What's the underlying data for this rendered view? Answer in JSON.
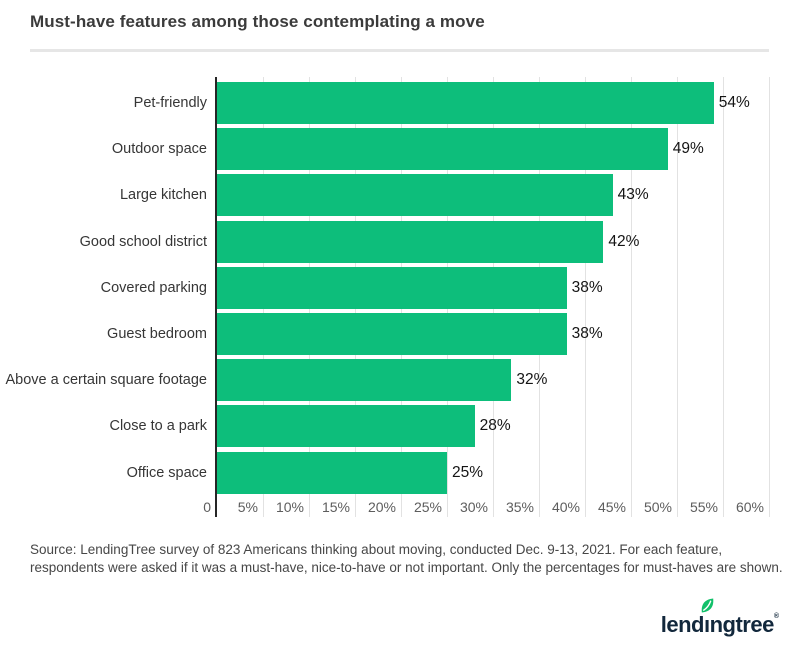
{
  "title": "Must-have features among those contemplating a move",
  "chart_data": {
    "type": "bar",
    "orientation": "horizontal",
    "title": "Must-have features among those contemplating a move",
    "categories": [
      "Pet-friendly",
      "Outdoor space",
      "Large kitchen",
      "Good school district",
      "Covered parking",
      "Guest bedroom",
      "Above a certain square footage",
      "Close to a park",
      "Office space"
    ],
    "values": [
      54,
      49,
      43,
      42,
      38,
      38,
      32,
      28,
      25
    ],
    "value_labels": [
      "54%",
      "49%",
      "43%",
      "42%",
      "38%",
      "38%",
      "32%",
      "28%",
      "25%"
    ],
    "x_ticks": [
      {
        "pct": 0,
        "label": "0"
      },
      {
        "pct": 5,
        "label": "5%"
      },
      {
        "pct": 10,
        "label": "10%"
      },
      {
        "pct": 15,
        "label": "15%"
      },
      {
        "pct": 20,
        "label": "20%"
      },
      {
        "pct": 25,
        "label": "25%"
      },
      {
        "pct": 30,
        "label": "30%"
      },
      {
        "pct": 35,
        "label": "35%"
      },
      {
        "pct": 40,
        "label": "40%"
      },
      {
        "pct": 45,
        "label": "45%"
      },
      {
        "pct": 50,
        "label": "50%"
      },
      {
        "pct": 55,
        "label": "55%"
      },
      {
        "pct": 60,
        "label": "60%"
      }
    ],
    "xlim": [
      0,
      60
    ],
    "grid": true,
    "bar_color": "#0dbe7b"
  },
  "footer": {
    "source_text": "Source: LendingTree survey of 823 Americans thinking about moving, conducted Dec. 9-13, 2021. For each feature, respondents were asked if it was a must-have, nice-to-have or not important. Only the percentages for must-haves are shown."
  },
  "logo": {
    "part1": "lend",
    "part2": "ı",
    "part3": "ngtree",
    "registered": "®",
    "leaf_color": "#12c06a",
    "text_color": "#12283c"
  }
}
